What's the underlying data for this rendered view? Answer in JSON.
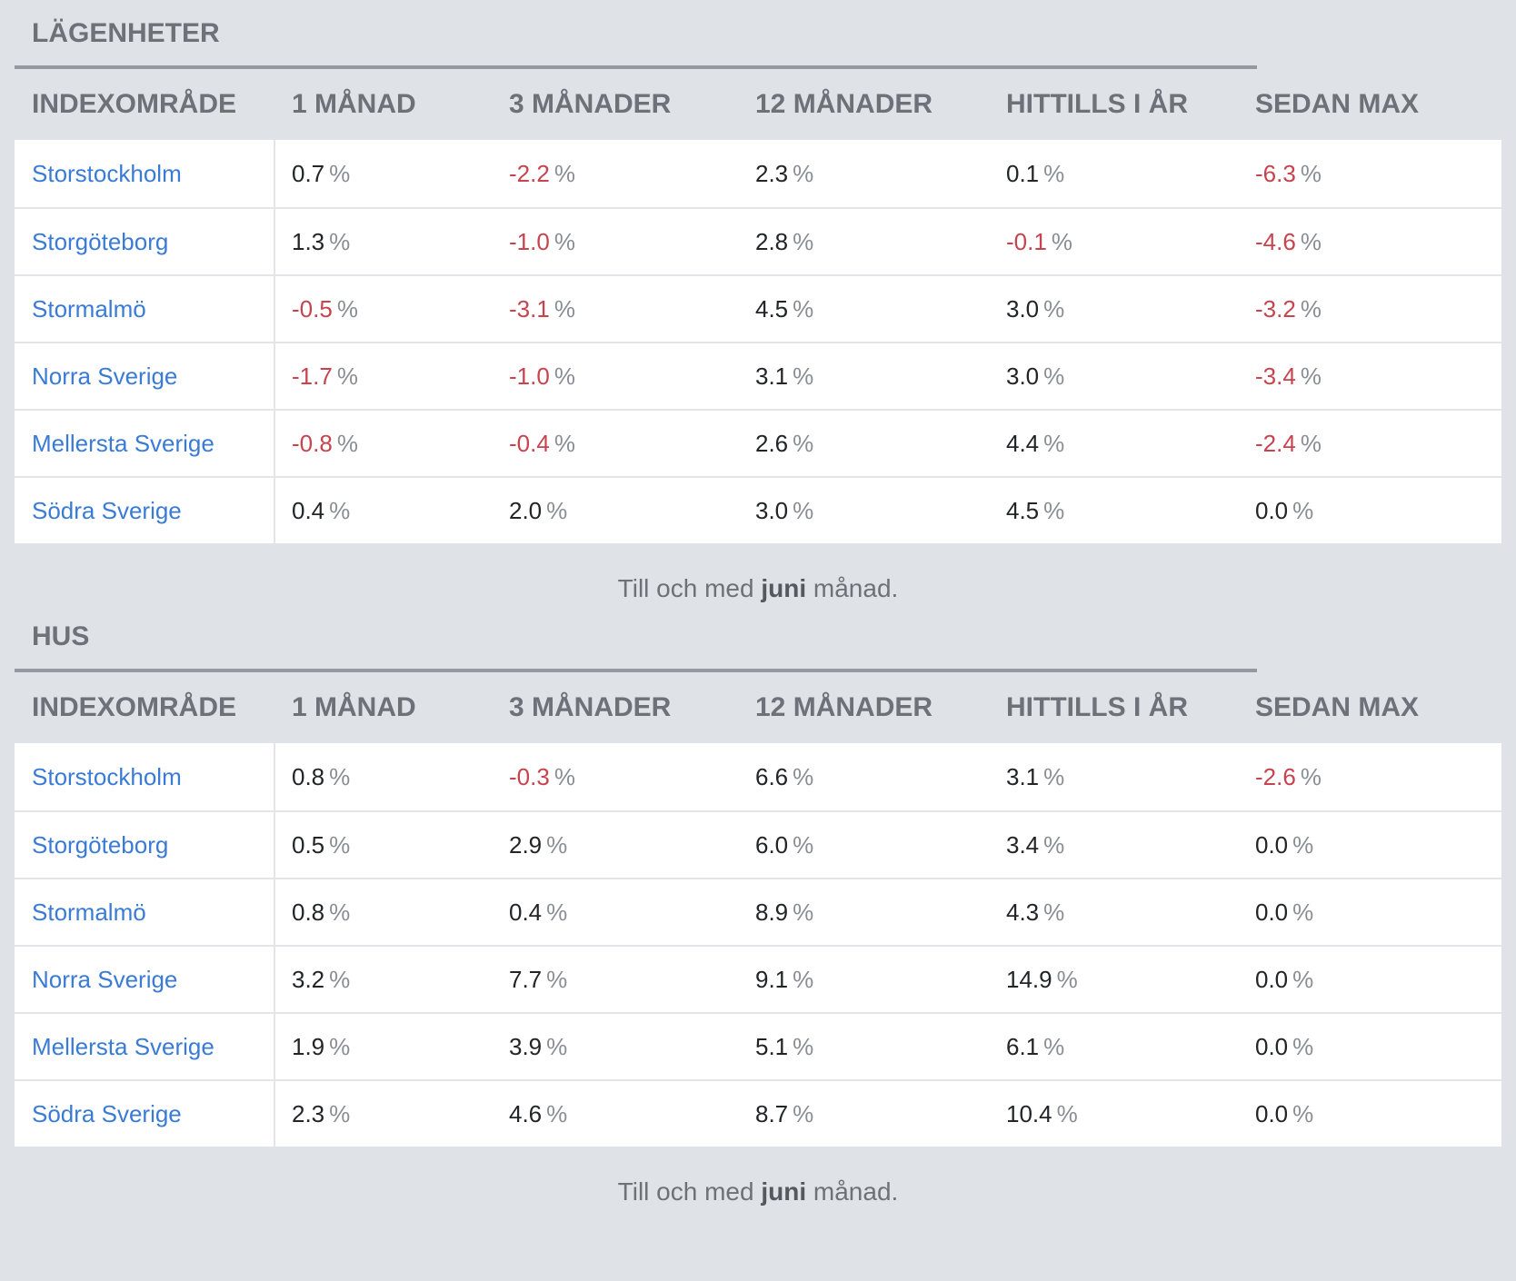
{
  "headers": [
    "INDEXOMRÅDE",
    "1 MÅNAD",
    "3 MÅNADER",
    "12 MÅNADER",
    "HITTILLS I ÅR",
    "SEDAN MAX"
  ],
  "percent_symbol": "%",
  "colors": {
    "link": "#3a7bd5",
    "negative": "#c7434e",
    "background": "#dfe2e7"
  },
  "footnote": {
    "prefix": "Till och med",
    "month": "juni",
    "suffix": "månad."
  },
  "apartments": {
    "title": "LÄGENHETER",
    "rows": [
      {
        "region": "Storstockholm",
        "values": [
          "0.7",
          "-2.2",
          "2.3",
          "0.1",
          "-6.3"
        ]
      },
      {
        "region": "Storgöteborg",
        "values": [
          "1.3",
          "-1.0",
          "2.8",
          "-0.1",
          "-4.6"
        ]
      },
      {
        "region": "Stormalmö",
        "values": [
          "-0.5",
          "-3.1",
          "4.5",
          "3.0",
          "-3.2"
        ]
      },
      {
        "region": "Norra Sverige",
        "values": [
          "-1.7",
          "-1.0",
          "3.1",
          "3.0",
          "-3.4"
        ]
      },
      {
        "region": "Mellersta Sverige",
        "values": [
          "-0.8",
          "-0.4",
          "2.6",
          "4.4",
          "-2.4"
        ]
      },
      {
        "region": "Södra Sverige",
        "values": [
          "0.4",
          "2.0",
          "3.0",
          "4.5",
          "0.0"
        ]
      }
    ]
  },
  "houses": {
    "title": "HUS",
    "rows": [
      {
        "region": "Storstockholm",
        "values": [
          "0.8",
          "-0.3",
          "6.6",
          "3.1",
          "-2.6"
        ]
      },
      {
        "region": "Storgöteborg",
        "values": [
          "0.5",
          "2.9",
          "6.0",
          "3.4",
          "0.0"
        ]
      },
      {
        "region": "Stormalmö",
        "values": [
          "0.8",
          "0.4",
          "8.9",
          "4.3",
          "0.0"
        ]
      },
      {
        "region": "Norra Sverige",
        "values": [
          "3.2",
          "7.7",
          "9.1",
          "14.9",
          "0.0"
        ]
      },
      {
        "region": "Mellersta Sverige",
        "values": [
          "1.9",
          "3.9",
          "5.1",
          "6.1",
          "0.0"
        ]
      },
      {
        "region": "Södra Sverige",
        "values": [
          "2.3",
          "4.6",
          "8.7",
          "10.4",
          "0.0"
        ]
      }
    ]
  }
}
